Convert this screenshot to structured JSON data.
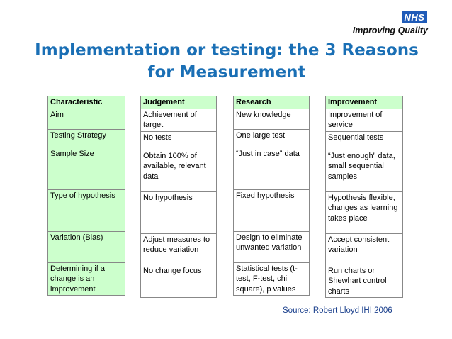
{
  "header": {
    "logo": "NHS",
    "tagline": "Improving Quality",
    "title": "Implementation or testing: the 3 Reasons for Measurement"
  },
  "table": {
    "columns": [
      {
        "header": "Characteristic",
        "cells": [
          "Aim",
          "Testing Strategy",
          "Sample Size",
          "Type of hypothesis",
          "Variation (Bias)",
          "Determining if a change is an improvement"
        ]
      },
      {
        "header": "Judgement",
        "cells": [
          "Achievement of target",
          "No tests",
          "Obtain 100% of available, relevant data",
          "No hypothesis",
          "Adjust measures to reduce variation",
          "No change focus"
        ]
      },
      {
        "header": "Research",
        "cells": [
          "New knowledge",
          "One large test",
          "“Just in case” data",
          "Fixed hypothesis",
          "Design to eliminate unwanted variation",
          "Statistical tests (t-test, F-test, chi square), p values"
        ]
      },
      {
        "header": "Improvement",
        "cells": [
          "Improvement of service",
          "Sequential tests",
          "“Just enough” data, small sequential samples",
          "Hypothesis flexible, changes as learning takes place",
          "Accept consistent variation",
          "Run charts or Shewhart control charts"
        ]
      }
    ]
  },
  "footer": {
    "source": "Source: Robert Lloyd IHI 2006"
  },
  "colors": {
    "title": "#1a6fb5",
    "header_fill": "#ccffcc",
    "nhs_blue": "#1f5bb8",
    "source_text": "#1a3f8c"
  }
}
